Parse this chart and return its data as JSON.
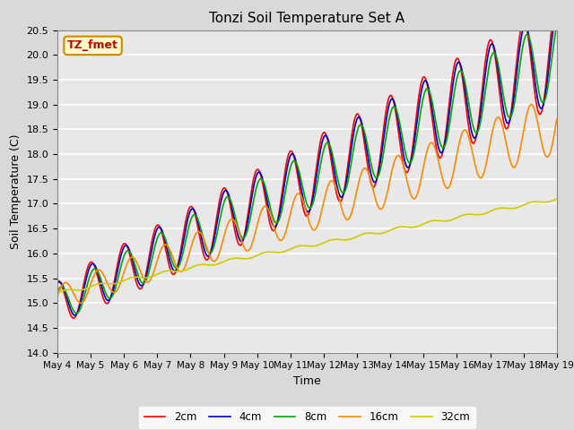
{
  "title": "Tonzi Soil Temperature Set A",
  "xlabel": "Time",
  "ylabel": "Soil Temperature (C)",
  "ylim": [
    14.0,
    20.5
  ],
  "annotation_text": "TZ_fmet",
  "annotation_bg": "#ffffcc",
  "annotation_border": "#cc8800",
  "annotation_text_color": "#cc0000",
  "series_colors": {
    "2cm": "#ff0000",
    "4cm": "#0000cc",
    "8cm": "#00aa00",
    "16cm": "#ff8800",
    "32cm": "#cccc00"
  },
  "series_labels": [
    "2cm",
    "4cm",
    "8cm",
    "16cm",
    "32cm"
  ],
  "x_tick_labels": [
    "May 4",
    "May 5",
    "May 6",
    "May 7",
    "May 8",
    "May 9",
    "May 10",
    "May 11",
    "May 12",
    "May 13",
    "May 14",
    "May 15",
    "May 16",
    "May 17",
    "May 18",
    "May 19"
  ],
  "bg_color": "#d9d9d9",
  "plot_bg": "#e8e8e8",
  "grid_color": "#ffffff",
  "linewidth": 1.2,
  "n_days": 15
}
